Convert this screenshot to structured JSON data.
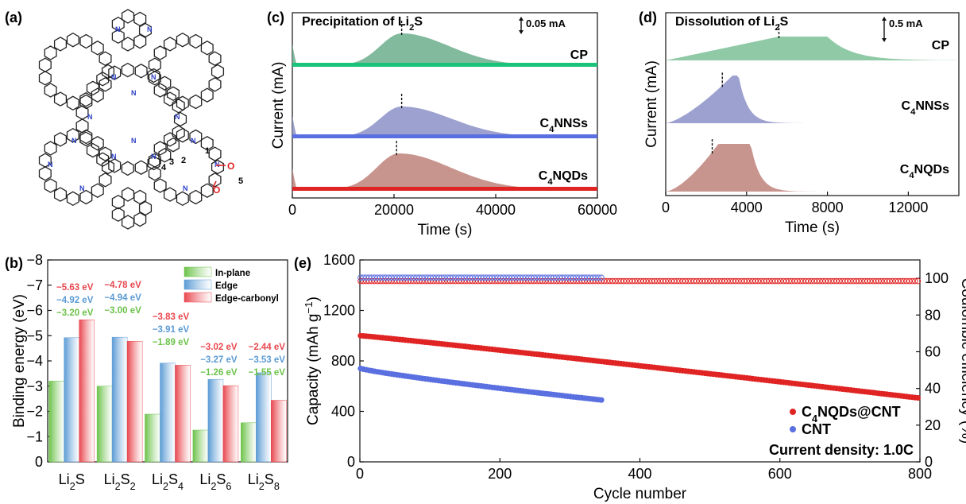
{
  "panels": {
    "a": "(a)",
    "b": "(b)",
    "c": "(c)",
    "d": "(d)",
    "e": "(e)"
  },
  "chart_data": [
    {
      "panel": "(b)",
      "type": "bar",
      "categories": [
        "Li2S",
        "Li2S2",
        "Li2S4",
        "Li2S6",
        "Li2S8"
      ],
      "category_labels": [
        {
          "base": "Li",
          "sub": "2",
          "mid": "S",
          "sub2": ""
        },
        {
          "base": "Li",
          "sub": "2",
          "mid": "S",
          "sub2": "2"
        },
        {
          "base": "Li",
          "sub": "2",
          "mid": "S",
          "sub2": "4"
        },
        {
          "base": "Li",
          "sub": "2",
          "mid": "S",
          "sub2": "6"
        },
        {
          "base": "Li",
          "sub": "2",
          "mid": "S",
          "sub2": "8"
        }
      ],
      "ylabel": "Binding energy (eV)",
      "ylim": [
        0,
        -8
      ],
      "yticks": [
        "0",
        "−1",
        "−2",
        "−3",
        "−4",
        "−5",
        "−6",
        "−7",
        "−8"
      ],
      "series": [
        {
          "name": "In-plane",
          "color": "#6cc24a",
          "values": [
            -3.2,
            -3.0,
            -1.89,
            -1.26,
            -1.55
          ],
          "labels": [
            "−3.20 eV",
            "−3.00 eV",
            "−1.89 eV",
            "−1.26 eV",
            "−1.55 eV"
          ]
        },
        {
          "name": "Edge",
          "color": "#5b9bd5",
          "values": [
            -4.92,
            -4.94,
            -3.91,
            -3.27,
            -3.53
          ],
          "labels": [
            "−4.92 eV",
            "−4.94 eV",
            "−3.91 eV",
            "−3.27 eV",
            "−3.53 eV"
          ]
        },
        {
          "name": "Edge-carbonyl",
          "color": "#e8474e",
          "values": [
            -5.63,
            -4.78,
            -3.83,
            -3.02,
            -2.44
          ],
          "labels": [
            "−5.63 eV",
            "−4.78 eV",
            "−3.83 eV",
            "−3.02 eV",
            "−2.44 eV"
          ]
        }
      ],
      "legend": "top-right"
    },
    {
      "panel": "(c)",
      "type": "area",
      "title": "Precipitation of Li",
      "title_sub": "2",
      "title_tail": "S",
      "scale_bar": "0.05 mA",
      "xlabel": "Time (s)",
      "ylabel": "Current (mA)",
      "xlim": [
        0,
        60000
      ],
      "xticks": [
        0,
        20000,
        40000,
        60000
      ],
      "series": [
        {
          "name": "CP",
          "color": "#6fb08f",
          "peak": 21500
        },
        {
          "name": "C4NNSs",
          "color": "#8f94c8",
          "peak": 21500
        },
        {
          "name": "C4NQDs",
          "color": "#c0867e",
          "peak": 20500
        }
      ],
      "series_labels": [
        {
          "pre": "CP",
          "sub": "",
          "post": ""
        },
        {
          "pre": "C",
          "sub": "4",
          "post": "NNSs"
        },
        {
          "pre": "C",
          "sub": "4",
          "post": "NQDs"
        }
      ]
    },
    {
      "panel": "(d)",
      "type": "area",
      "title": "Dissolution of Li",
      "title_sub": "2",
      "title_tail": "S",
      "scale_bar": "0.5 mA",
      "xlabel": "Time (s)",
      "ylabel": "Current (mA)",
      "xlim": [
        0,
        14500
      ],
      "xticks": [
        0,
        4000,
        8000,
        12000
      ],
      "series": [
        {
          "name": "CP",
          "color": "#7fc29a",
          "peak": 5600
        },
        {
          "name": "C4NNSs",
          "color": "#8f94c8",
          "peak": 2800
        },
        {
          "name": "C4NQDs",
          "color": "#c0867e",
          "peak": 2300
        }
      ],
      "series_labels": [
        {
          "pre": "CP",
          "sub": "",
          "post": ""
        },
        {
          "pre": "C",
          "sub": "4",
          "post": "NNSs"
        },
        {
          "pre": "C",
          "sub": "4",
          "post": "NQDs"
        }
      ]
    },
    {
      "panel": "(e)",
      "type": "scatter",
      "xlabel": "Cycle number",
      "ylabel": "Capacity (mAh g",
      "ylabel_sup": "−1",
      "ylabel_tail": ")",
      "y2label": "Coulombic efficiency (%)",
      "xlim": [
        0,
        800
      ],
      "ylim": [
        0,
        1600
      ],
      "y2lim": [
        0,
        110
      ],
      "xticks": [
        0,
        200,
        400,
        600,
        800
      ],
      "yticks": [
        0,
        400,
        800,
        1200,
        1600
      ],
      "y2ticks": [
        0,
        20,
        40,
        60,
        80,
        100
      ],
      "annotation": "Current density: 1.0C",
      "legend": "bottom-right",
      "series": [
        {
          "name": "C4NQDs@CNT",
          "color": "#e02424",
          "capacity": {
            "start": 1000,
            "end": 505,
            "cycles": 800
          },
          "efficiency": 99
        },
        {
          "name": "CNT",
          "color": "#5a6fe0",
          "capacity": {
            "start": 740,
            "end": 490,
            "cycles": 345
          },
          "efficiency": 100
        }
      ],
      "legend_labels": [
        {
          "pre": "C",
          "sub": "4",
          "post": "NQDs@CNT"
        },
        {
          "pre": "CNT",
          "sub": "",
          "post": ""
        }
      ]
    }
  ],
  "structure": {
    "labels": [
      "1",
      "2",
      "3",
      "4",
      "5",
      "O",
      "O"
    ]
  }
}
